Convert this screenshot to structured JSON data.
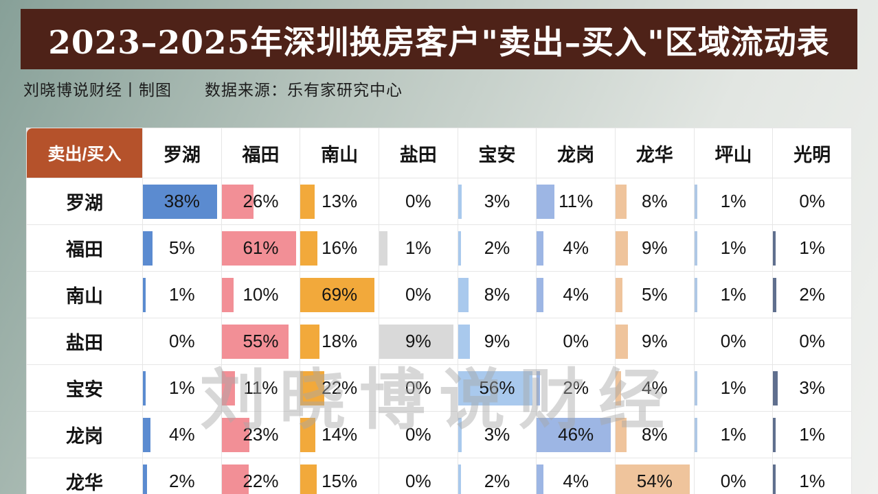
{
  "title": "2023–2025年深圳换房客户\"卖出–买入\"区域流动表",
  "subtitle": "刘晓博说财经丨制图　　数据来源：乐有家研究中心",
  "watermark": "刘晓博说财经",
  "chart_data": {
    "type": "table",
    "corner_label": "卖出/买入",
    "columns": [
      "罗湖",
      "福田",
      "南山",
      "盐田",
      "宝安",
      "龙岗",
      "龙华",
      "坪山",
      "光明"
    ],
    "rows": [
      {
        "label": "罗湖",
        "values": [
          38,
          26,
          13,
          0,
          3,
          11,
          8,
          1,
          0
        ]
      },
      {
        "label": "福田",
        "values": [
          5,
          61,
          16,
          1,
          2,
          4,
          9,
          1,
          1
        ]
      },
      {
        "label": "南山",
        "values": [
          1,
          10,
          69,
          0,
          8,
          4,
          5,
          1,
          2
        ]
      },
      {
        "label": "盐田",
        "values": [
          0,
          55,
          18,
          9,
          9,
          0,
          9,
          0,
          0
        ]
      },
      {
        "label": "宝安",
        "values": [
          1,
          11,
          22,
          0,
          56,
          2,
          4,
          1,
          3
        ]
      },
      {
        "label": "龙岗",
        "values": [
          4,
          23,
          14,
          0,
          3,
          46,
          8,
          1,
          1
        ]
      },
      {
        "label": "龙华",
        "values": [
          2,
          22,
          15,
          0,
          2,
          4,
          54,
          0,
          1
        ]
      }
    ],
    "unit": "%",
    "column_bar_colors": [
      "#5B8BD0",
      "#F28F96",
      "#F2A93B",
      "#D9D9D9",
      "#A9C9ED",
      "#9DB6E4",
      "#EFC49C",
      "#AFC8E5",
      "#5F6F8E"
    ],
    "bar_scale_max_per_column": [
      38,
      61,
      69,
      9,
      56,
      46,
      54,
      55,
      50
    ],
    "legend_position": "none",
    "grid": true
  },
  "theme": {
    "title_bg": "#4E2218",
    "title_text": "#FFFFFF",
    "corner_bg": "#B5522B",
    "cell_bg": "#FFFFFF",
    "grid_line": "#E6E6E6",
    "body_text": "#141414",
    "watermark_color": "#A8A8A8"
  }
}
